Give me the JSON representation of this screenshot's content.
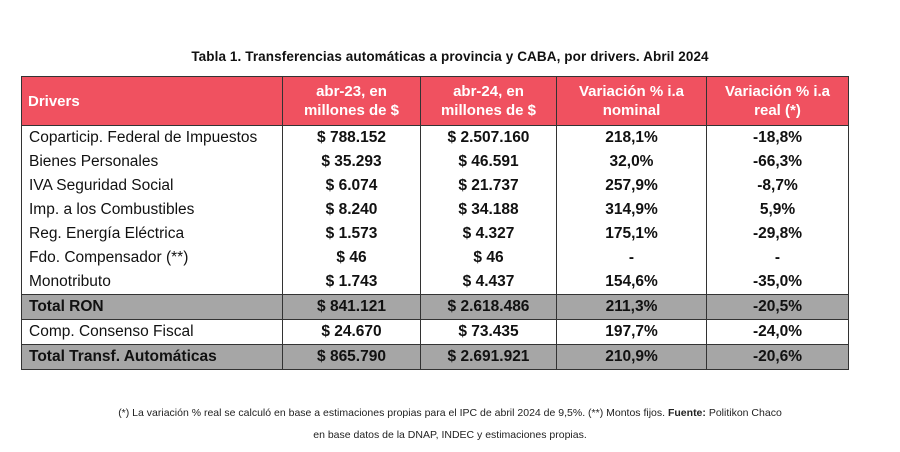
{
  "title": "Tabla 1. Transferencias automáticas a provincia y CABA, por drivers. Abril 2024",
  "headers": {
    "driver": "Drivers",
    "apr23": "abr-23, en millones de $",
    "apr24": "abr-24, en millones de $",
    "nominal": "Variación % i.a nominal",
    "real": "Variación % i.a real (*)"
  },
  "rows": [
    {
      "driver": "Coparticip. Federal de Impuestos",
      "apr23": "$ 788.152",
      "apr24": "$ 2.507.160",
      "nominal": "218,1%",
      "real": "-18,8%"
    },
    {
      "driver": "Bienes Personales",
      "apr23": "$ 35.293",
      "apr24": "$ 46.591",
      "nominal": "32,0%",
      "real": "-66,3%"
    },
    {
      "driver": "IVA Seguridad Social",
      "apr23": "$ 6.074",
      "apr24": "$ 21.737",
      "nominal": "257,9%",
      "real": "-8,7%"
    },
    {
      "driver": "Imp. a los Combustibles",
      "apr23": "$ 8.240",
      "apr24": "$ 34.188",
      "nominal": "314,9%",
      "real": "5,9%"
    },
    {
      "driver": "Reg. Energía Eléctrica",
      "apr23": "$ 1.573",
      "apr24": "$ 4.327",
      "nominal": "175,1%",
      "real": "-29,8%"
    },
    {
      "driver": "Fdo. Compensador (**)",
      "apr23": "$ 46",
      "apr24": "$ 46",
      "nominal": "-",
      "real": "-"
    },
    {
      "driver": "Monotributo",
      "apr23": "$ 1.743",
      "apr24": "$ 4.437",
      "nominal": "154,6%",
      "real": "-35,0%"
    }
  ],
  "total_ron": {
    "driver": "Total RON",
    "apr23": "$ 841.121",
    "apr24": "$ 2.618.486",
    "nominal": "211,3%",
    "real": "-20,5%"
  },
  "consenso": {
    "driver": "Comp. Consenso Fiscal",
    "apr23": "$ 24.670",
    "apr24": "$ 73.435",
    "nominal": "197,7%",
    "real": "-24,0%"
  },
  "total_auto": {
    "driver": "Total Transf. Automáticas",
    "apr23": "$ 865.790",
    "apr24": "$ 2.691.921",
    "nominal": "210,9%",
    "real": "-20,6%"
  },
  "footnote": {
    "line1_text": "(*) La variación % real se calculó en base a estimaciones propias para el IPC de abril 2024 de 9,5%. (**) Montos fijos.",
    "source_label": "Fuente:",
    "source_text": "Politikon Chaco",
    "line2_text": "en base datos de la DNAP, INDEC y estimaciones propias."
  },
  "colors": {
    "header_bg": "#f05160",
    "total_bg": "#a6a6a6"
  }
}
